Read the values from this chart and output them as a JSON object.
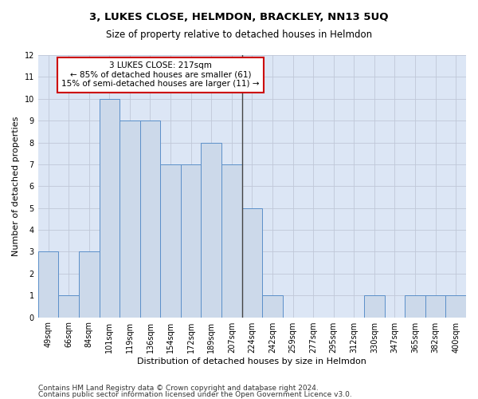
{
  "title": "3, LUKES CLOSE, HELMDON, BRACKLEY, NN13 5UQ",
  "subtitle": "Size of property relative to detached houses in Helmdon",
  "xlabel": "Distribution of detached houses by size in Helmdon",
  "ylabel": "Number of detached properties",
  "categories": [
    "49sqm",
    "66sqm",
    "84sqm",
    "101sqm",
    "119sqm",
    "136sqm",
    "154sqm",
    "172sqm",
    "189sqm",
    "207sqm",
    "224sqm",
    "242sqm",
    "259sqm",
    "277sqm",
    "295sqm",
    "312sqm",
    "330sqm",
    "347sqm",
    "365sqm",
    "382sqm",
    "400sqm"
  ],
  "values": [
    3,
    1,
    3,
    10,
    9,
    9,
    7,
    7,
    8,
    7,
    5,
    1,
    0,
    0,
    0,
    0,
    1,
    0,
    1,
    1,
    1
  ],
  "bar_color": "#ccd9ea",
  "bar_edge_color": "#5b8fc9",
  "highlight_bar_index": 9,
  "vline_x": 9.5,
  "annotation_text": "3 LUKES CLOSE: 217sqm\n← 85% of detached houses are smaller (61)\n15% of semi-detached houses are larger (11) →",
  "annotation_box_facecolor": "#ffffff",
  "annotation_box_edgecolor": "#cc0000",
  "ylim": [
    0,
    12
  ],
  "yticks": [
    0,
    1,
    2,
    3,
    4,
    5,
    6,
    7,
    8,
    9,
    10,
    11,
    12
  ],
  "footer_line1": "Contains HM Land Registry data © Crown copyright and database right 2024.",
  "footer_line2": "Contains public sector information licensed under the Open Government Licence v3.0.",
  "bg_color": "#ffffff",
  "plot_bg_color": "#dce6f5",
  "grid_color": "#c0c8d8",
  "title_fontsize": 9.5,
  "subtitle_fontsize": 8.5,
  "ylabel_fontsize": 8,
  "xlabel_fontsize": 8,
  "tick_fontsize": 7,
  "annotation_fontsize": 7.5,
  "footer_fontsize": 6.5
}
